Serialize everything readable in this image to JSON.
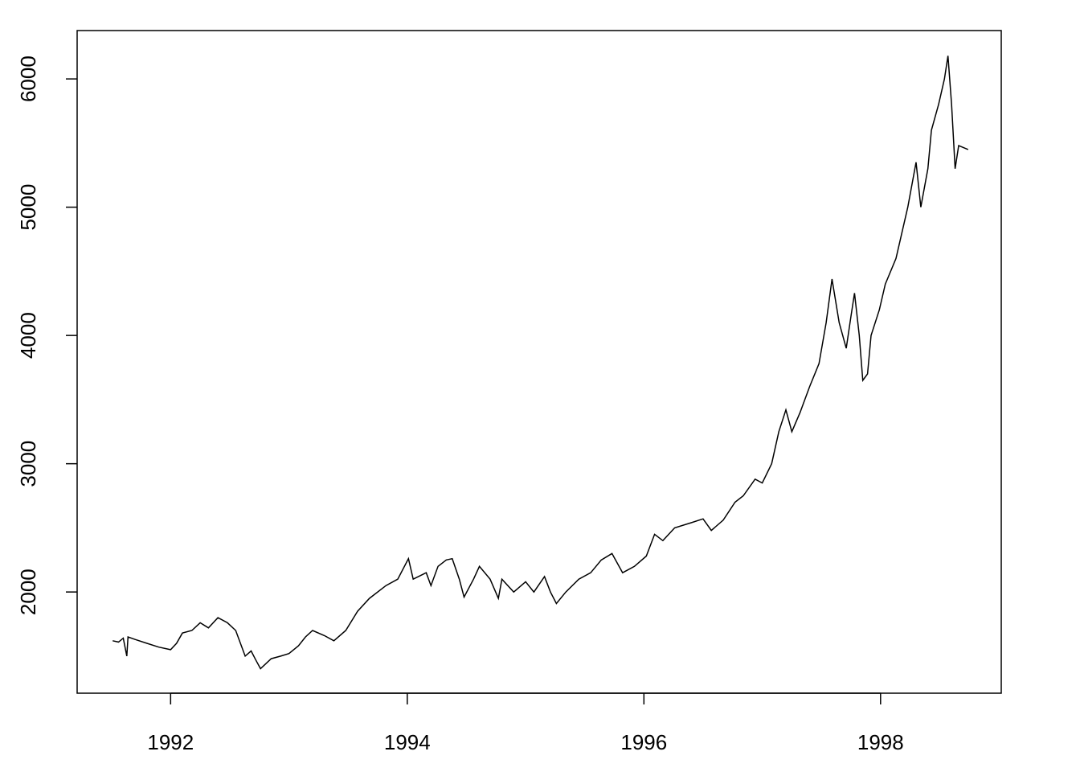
{
  "chart_data": {
    "type": "line",
    "x": [
      1991.51,
      1991.56,
      1991.6,
      1991.63,
      1991.64,
      1991.7,
      1991.8,
      1991.9,
      1992.0,
      1992.05,
      1992.1,
      1992.18,
      1992.25,
      1992.32,
      1992.4,
      1992.48,
      1992.55,
      1992.63,
      1992.68,
      1992.72,
      1992.76,
      1992.85,
      1992.93,
      1993.0,
      1993.08,
      1993.14,
      1993.2,
      1993.3,
      1993.38,
      1993.48,
      1993.58,
      1993.68,
      1993.82,
      1993.92,
      1994.01,
      1994.05,
      1994.16,
      1994.2,
      1994.26,
      1994.33,
      1994.38,
      1994.44,
      1994.48,
      1994.56,
      1994.61,
      1994.7,
      1994.77,
      1994.8,
      1994.9,
      1995.0,
      1995.07,
      1995.16,
      1995.21,
      1995.26,
      1995.34,
      1995.45,
      1995.55,
      1995.64,
      1995.73,
      1995.82,
      1995.92,
      1996.02,
      1996.09,
      1996.16,
      1996.26,
      1996.4,
      1996.5,
      1996.57,
      1996.67,
      1996.77,
      1996.84,
      1996.94,
      1997.0,
      1997.08,
      1997.14,
      1997.2,
      1997.25,
      1997.32,
      1997.4,
      1997.48,
      1997.54,
      1997.59,
      1997.65,
      1997.71,
      1997.75,
      1997.78,
      1997.82,
      1997.85,
      1997.89,
      1997.92,
      1997.99,
      1998.04,
      1998.13,
      1998.23,
      1998.3,
      1998.34,
      1998.4,
      1998.43,
      1998.49,
      1998.54,
      1998.57,
      1998.6,
      1998.63,
      1998.66,
      1998.74
    ],
    "values": [
      1620,
      1610,
      1640,
      1500,
      1650,
      1630,
      1600,
      1570,
      1550,
      1600,
      1680,
      1700,
      1760,
      1720,
      1800,
      1760,
      1700,
      1500,
      1540,
      1470,
      1402,
      1480,
      1500,
      1520,
      1580,
      1650,
      1700,
      1660,
      1620,
      1700,
      1850,
      1950,
      2050,
      2100,
      2260,
      2100,
      2150,
      2050,
      2200,
      2250,
      2260,
      2100,
      1960,
      2100,
      2200,
      2100,
      1950,
      2100,
      2000,
      2080,
      2000,
      2120,
      2000,
      1910,
      2000,
      2100,
      2150,
      2250,
      2300,
      2150,
      2200,
      2280,
      2450,
      2400,
      2500,
      2540,
      2570,
      2480,
      2560,
      2700,
      2750,
      2880,
      2850,
      3000,
      3250,
      3420,
      3250,
      3400,
      3600,
      3780,
      4100,
      4440,
      4100,
      3900,
      4150,
      4330,
      4000,
      3650,
      3700,
      4000,
      4200,
      4400,
      4600,
      5000,
      5350,
      5000,
      5300,
      5600,
      5800,
      6000,
      6180,
      5800,
      5300,
      5480,
      5450
    ],
    "color": "#000000",
    "xlim": [
      1991.21,
      1999.02
    ],
    "ylim": [
      1211,
      6377
    ],
    "xticks": [
      1992,
      1994,
      1996,
      1998
    ],
    "yticks": [
      2000,
      3000,
      4000,
      5000,
      6000
    ]
  }
}
